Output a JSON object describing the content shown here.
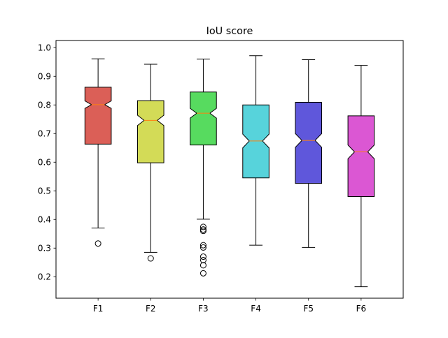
{
  "chart_data": {
    "type": "boxplot",
    "title": "IoU score",
    "xlabel": "",
    "ylabel": "",
    "ylim": [
      0.125,
      1.025
    ],
    "yticks": [
      0.2,
      0.3,
      0.4,
      0.5,
      0.6,
      0.7,
      0.8,
      0.9,
      1.0
    ],
    "ytick_labels": [
      "0.2",
      "0.3",
      "0.4",
      "0.5",
      "0.6",
      "0.7",
      "0.8",
      "0.9",
      "1.0"
    ],
    "notched": true,
    "grid": false,
    "median_color": "#ff7f0e",
    "categories": [
      "F1",
      "F2",
      "F3",
      "F4",
      "F5",
      "F6"
    ],
    "boxes": [
      {
        "label": "F1",
        "color": "#db5f57",
        "whislo": 0.37,
        "q1": 0.663,
        "med": 0.801,
        "q3": 0.862,
        "whishi": 0.961,
        "notch_lo": 0.788,
        "notch_hi": 0.814,
        "fliers": [
          0.316
        ]
      },
      {
        "label": "F2",
        "color": "#d3db57",
        "whislo": 0.285,
        "q1": 0.598,
        "med": 0.746,
        "q3": 0.815,
        "whishi": 0.942,
        "notch_lo": 0.728,
        "notch_hi": 0.764,
        "fliers": [
          0.264
        ]
      },
      {
        "label": "F3",
        "color": "#57db5f",
        "whislo": 0.401,
        "q1": 0.66,
        "med": 0.771,
        "q3": 0.845,
        "whishi": 0.96,
        "notch_lo": 0.754,
        "notch_hi": 0.788,
        "fliers": [
          0.374,
          0.365,
          0.36,
          0.31,
          0.302,
          0.27,
          0.258,
          0.24,
          0.212
        ]
      },
      {
        "label": "F4",
        "color": "#57d3db",
        "whislo": 0.31,
        "q1": 0.545,
        "med": 0.674,
        "q3": 0.8,
        "whishi": 0.972,
        "notch_lo": 0.65,
        "notch_hi": 0.698,
        "fliers": []
      },
      {
        "label": "F5",
        "color": "#5f57db",
        "whislo": 0.302,
        "q1": 0.526,
        "med": 0.676,
        "q3": 0.809,
        "whishi": 0.958,
        "notch_lo": 0.652,
        "notch_hi": 0.7,
        "fliers": []
      },
      {
        "label": "F6",
        "color": "#db57d3",
        "whislo": 0.165,
        "q1": 0.48,
        "med": 0.636,
        "q3": 0.762,
        "whishi": 0.938,
        "notch_lo": 0.612,
        "notch_hi": 0.66,
        "fliers": []
      }
    ]
  }
}
